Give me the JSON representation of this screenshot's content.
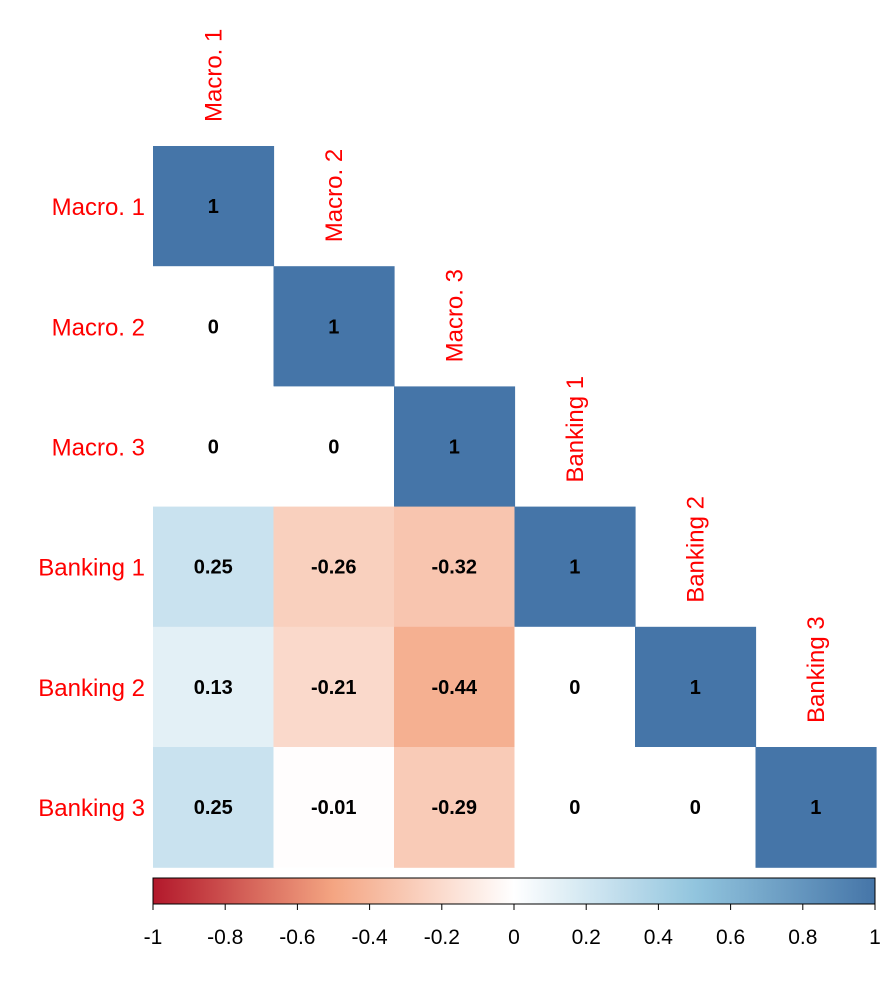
{
  "chart_data": {
    "type": "heatmap",
    "layout": "lower-triangle",
    "variables": [
      "Macro. 1",
      "Macro. 2",
      "Macro. 3",
      "Banking 1",
      "Banking 2",
      "Banking 3"
    ],
    "matrix": [
      [
        1,
        null,
        null,
        null,
        null,
        null
      ],
      [
        0,
        1,
        null,
        null,
        null,
        null
      ],
      [
        0,
        0,
        1,
        null,
        null,
        null
      ],
      [
        0.25,
        -0.26,
        -0.32,
        1,
        null,
        null
      ],
      [
        0.13,
        -0.21,
        -0.44,
        0,
        1,
        null
      ],
      [
        0.25,
        -0.01,
        -0.29,
        0,
        0,
        1
      ]
    ],
    "labels": [
      [
        "1",
        "",
        "",
        "",
        "",
        ""
      ],
      [
        "0",
        "1",
        "",
        "",
        "",
        ""
      ],
      [
        "0",
        "0",
        "1",
        "",
        "",
        ""
      ],
      [
        "0.25",
        "-0.26",
        "-0.32",
        "1",
        "",
        ""
      ],
      [
        "0.13",
        "-0.21",
        "-0.44",
        "0",
        "1",
        ""
      ],
      [
        "0.25",
        "-0.01",
        "-0.29",
        "0",
        "0",
        "1"
      ]
    ],
    "colorbar": {
      "range": [
        -1,
        1
      ],
      "ticks": [
        -1,
        -0.8,
        -0.6,
        -0.4,
        -0.2,
        0,
        0.2,
        0.4,
        0.6,
        0.8,
        1
      ],
      "tick_labels": [
        "-1",
        "-0.8",
        "-0.6",
        "-0.4",
        "-0.2",
        "0",
        "0.2",
        "0.4",
        "0.6",
        "0.8",
        "1"
      ],
      "colors": {
        "negative": "#b2182b",
        "mid_negative": "#f4a582",
        "zero": "#ffffff",
        "mid_positive": "#92c5de",
        "positive": "#4575a8"
      },
      "placement": "bottom"
    },
    "label_color": "#ff0000",
    "text_color": "#000000",
    "grid": false
  }
}
